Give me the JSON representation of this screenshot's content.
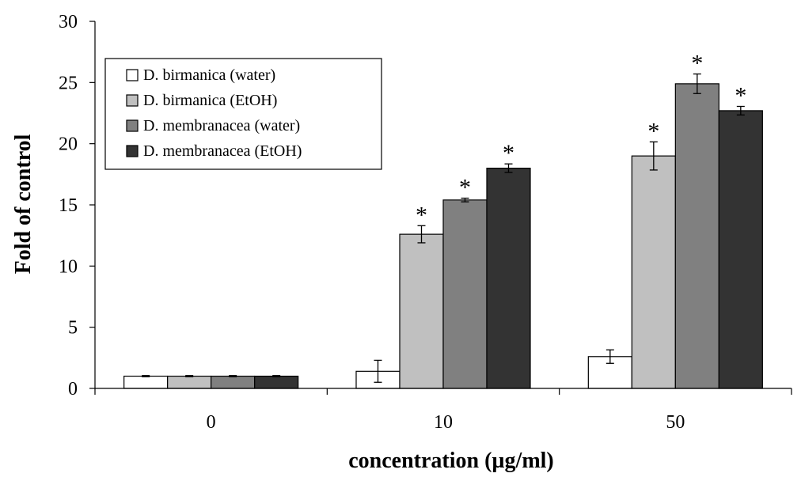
{
  "chart_data": {
    "type": "bar",
    "categories": [
      "0",
      "10",
      "50"
    ],
    "xlabel": "concentration (µg/ml)",
    "ylabel": "Fold of control",
    "ylim": [
      0,
      30
    ],
    "yticks": [
      "0",
      "5",
      "10",
      "15",
      "20",
      "25",
      "30"
    ],
    "legend_position": "top-left",
    "significance_marker": "*",
    "series": [
      {
        "name": "D. birmanica (water)",
        "color": "#ffffff",
        "values": [
          1.0,
          1.4,
          2.6
        ],
        "errors": [
          0.05,
          0.9,
          0.55
        ],
        "significant": [
          false,
          false,
          false
        ]
      },
      {
        "name": "D. birmanica (EtOH)",
        "color": "#c0c0c0",
        "values": [
          1.0,
          12.6,
          19.0
        ],
        "errors": [
          0.05,
          0.7,
          1.15
        ],
        "significant": [
          false,
          true,
          true
        ]
      },
      {
        "name": "D. membranacea (water)",
        "color": "#808080",
        "values": [
          1.0,
          15.4,
          24.9
        ],
        "errors": [
          0.05,
          0.15,
          0.8
        ],
        "significant": [
          false,
          true,
          true
        ]
      },
      {
        "name": "D. membranacea (EtOH)",
        "color": "#333333",
        "values": [
          1.0,
          18.0,
          22.7
        ],
        "errors": [
          0.05,
          0.35,
          0.35
        ],
        "significant": [
          false,
          true,
          true
        ]
      }
    ]
  }
}
